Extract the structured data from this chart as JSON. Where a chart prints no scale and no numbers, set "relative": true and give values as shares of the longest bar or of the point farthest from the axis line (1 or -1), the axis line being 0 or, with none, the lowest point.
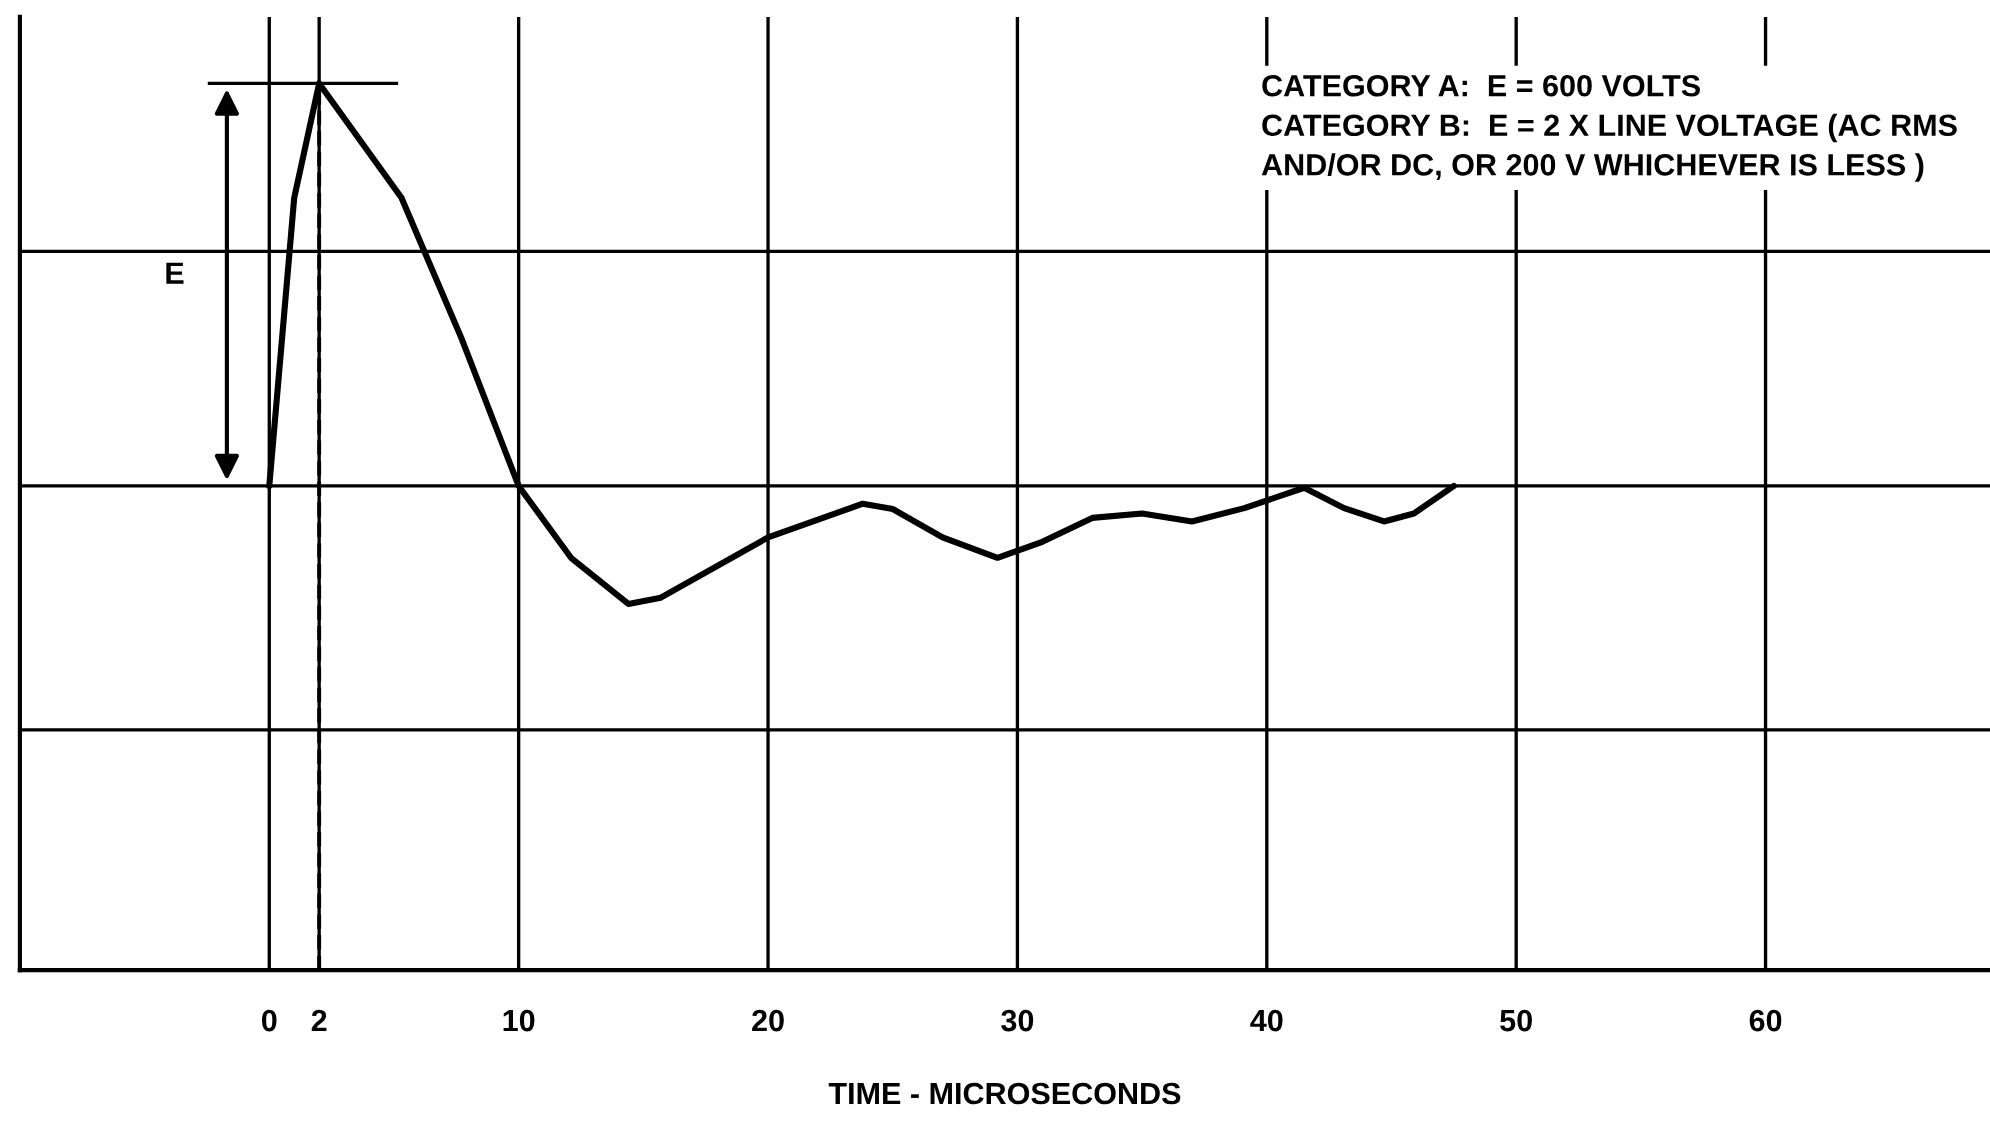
{
  "chart_data": {
    "type": "line",
    "relative": true,
    "xlabel": "TIME - MICROSECONDS",
    "xlim": [
      -10,
      69
    ],
    "xticks": [
      0,
      2,
      10,
      20,
      30,
      40,
      50,
      60
    ],
    "tick_labels": "x",
    "grid": true,
    "legend": false,
    "line_style": "solid",
    "marker": "none",
    "series": [
      {
        "color": "#000000",
        "x": [
          0,
          1,
          2,
          5.3,
          7.7,
          10,
          12.1,
          14.4,
          15.7,
          20,
          23.8,
          25,
          27,
          29.2,
          31,
          33,
          35,
          37,
          39.1,
          41.5,
          43.1,
          44.7,
          45.9,
          47.5
        ],
        "values": [
          0.546,
          0.871,
          1.0,
          0.871,
          0.713,
          0.546,
          0.465,
          0.413,
          0.42,
          0.488,
          0.526,
          0.52,
          0.488,
          0.465,
          0.483,
          0.51,
          0.515,
          0.506,
          0.521,
          0.544,
          0.521,
          0.506,
          0.515,
          0.546
        ]
      }
    ],
    "ref_lines": [
      {
        "axis": "x",
        "value": 2,
        "label": null,
        "line_style": "dashed",
        "color": "#000000"
      }
    ],
    "annotations": [
      "E",
      "CATEGORY A:  E = 600 VOLTS\nCATEGORY B:  E = 2 X LINE VOLTAGE (AC RMS\nAND/OR DC, OR 200 V WHICHEVER IS LESS )"
    ]
  }
}
